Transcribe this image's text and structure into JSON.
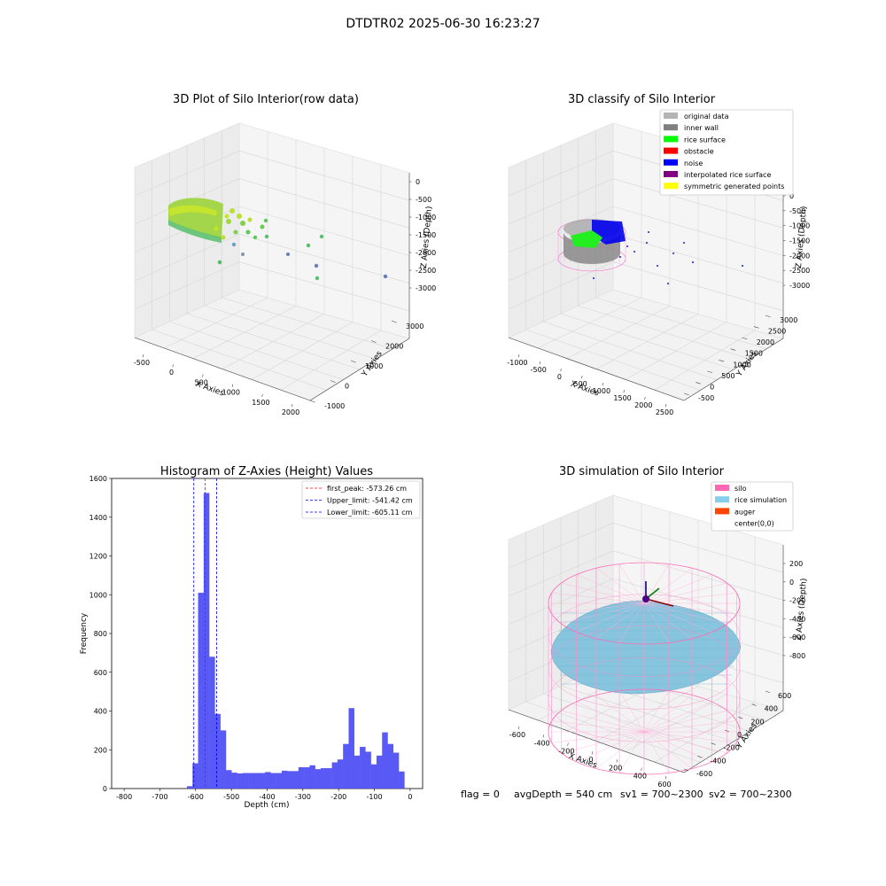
{
  "figure": {
    "suptitle": "DTDTR02 2025-06-30 16:23:27",
    "footer": {
      "flag": "flag = 0",
      "avg_depth": "avgDepth = 540 cm",
      "sv1": "sv1 = 700~2300",
      "sv2": "sv2 = 700~2300"
    }
  },
  "chart_data": [
    {
      "type": "scatter",
      "projection": "3d",
      "title": "3D Plot of Silo Interior(row data)",
      "xlabel": "X Axies",
      "ylabel": "Y Axies",
      "zlabel": "Z Axies (Depth)",
      "xticks": [
        "-500",
        "0",
        "500",
        "1000",
        "1500",
        "2000"
      ],
      "yticks": [
        "-1000",
        "0",
        "1000",
        "2000",
        "3000"
      ],
      "zticks": [
        "0",
        "-500",
        "-1000",
        "-1500",
        "-2000",
        "-2500",
        "-3000"
      ],
      "colormap": "viridis",
      "point_color": "#a0e632"
    },
    {
      "type": "scatter",
      "projection": "3d",
      "title": "3D classify of Silo Interior",
      "xlabel": "X Axies",
      "ylabel": "Y Axies",
      "zlabel": "Z Axies (Depth)",
      "xticks": [
        "-1000",
        "-500",
        "0",
        "500",
        "1000",
        "1500",
        "2000",
        "2500"
      ],
      "yticks": [
        "-500",
        "0",
        "500",
        "1000",
        "1500",
        "2000",
        "2500",
        "3000"
      ],
      "zticks": [
        "0",
        "-500",
        "-1000",
        "-1500",
        "-2000",
        "-2500",
        "-3000"
      ],
      "legend_position": "top-right",
      "legend": [
        {
          "label": "original data",
          "color": "#b4b4b4"
        },
        {
          "label": "inner wall",
          "color": "#808080"
        },
        {
          "label": "rice surface",
          "color": "#00ff00"
        },
        {
          "label": "obstacle",
          "color": "#ff0000"
        },
        {
          "label": "noise",
          "color": "#0000ff"
        },
        {
          "label": "interpolated rice surface",
          "color": "#800080"
        },
        {
          "label": "symmetric generated points",
          "color": "#ffff00"
        }
      ]
    },
    {
      "type": "bar",
      "title": "Histogram of Z-Axies (Height) Values",
      "xlabel": "Depth (cm)",
      "ylabel": "Frequency",
      "xlim": [
        -835,
        35
      ],
      "ylim": [
        0,
        1600
      ],
      "xticks": [
        -800,
        -700,
        -600,
        -500,
        -400,
        -300,
        -200,
        -100,
        0
      ],
      "yticks": [
        0,
        200,
        400,
        600,
        800,
        1000,
        1200,
        1400,
        1600
      ],
      "bar_color": "#5050f5",
      "bin_width": 15.6,
      "values": [
        {
          "x": -624.4,
          "y": 12
        },
        {
          "x": -608.8,
          "y": 130
        },
        {
          "x": -593.2,
          "y": 1010
        },
        {
          "x": -577.6,
          "y": 1525
        },
        {
          "x": -562.0,
          "y": 680
        },
        {
          "x": -546.4,
          "y": 385
        },
        {
          "x": -530.8,
          "y": 300
        },
        {
          "x": -515.2,
          "y": 95
        },
        {
          "x": -499.6,
          "y": 82
        },
        {
          "x": -484.0,
          "y": 78
        },
        {
          "x": -468.4,
          "y": 80
        },
        {
          "x": -452.8,
          "y": 80
        },
        {
          "x": -437.2,
          "y": 80
        },
        {
          "x": -421.6,
          "y": 80
        },
        {
          "x": -406.0,
          "y": 85
        },
        {
          "x": -390.4,
          "y": 80
        },
        {
          "x": -374.8,
          "y": 80
        },
        {
          "x": -359.2,
          "y": 92
        },
        {
          "x": -343.6,
          "y": 90
        },
        {
          "x": -328.0,
          "y": 90
        },
        {
          "x": -312.4,
          "y": 110
        },
        {
          "x": -296.8,
          "y": 110
        },
        {
          "x": -281.2,
          "y": 120
        },
        {
          "x": -265.6,
          "y": 100
        },
        {
          "x": -250.0,
          "y": 105
        },
        {
          "x": -234.4,
          "y": 105
        },
        {
          "x": -218.8,
          "y": 135
        },
        {
          "x": -203.2,
          "y": 150
        },
        {
          "x": -187.6,
          "y": 230
        },
        {
          "x": -172.0,
          "y": 415
        },
        {
          "x": -156.4,
          "y": 170
        },
        {
          "x": -140.8,
          "y": 215
        },
        {
          "x": -125.2,
          "y": 190
        },
        {
          "x": -109.6,
          "y": 125
        },
        {
          "x": -94.0,
          "y": 170
        },
        {
          "x": -78.4,
          "y": 290
        },
        {
          "x": -62.8,
          "y": 230
        },
        {
          "x": -47.2,
          "y": 185
        },
        {
          "x": -31.6,
          "y": 88
        }
      ],
      "vlines": [
        {
          "label": "first_peak: -573.26 cm",
          "x": -573.26,
          "color": "#ff0000"
        },
        {
          "label": "Upper_limit: -541.42 cm",
          "x": -541.42,
          "color": "#0000ff"
        },
        {
          "label": "Lower_limit: -605.11 cm",
          "x": -605.11,
          "color": "#0000ff"
        }
      ],
      "legend_position": "top-right"
    },
    {
      "type": "scatter",
      "projection": "3d",
      "title": "3D simulation of Silo Interior",
      "xlabel": "X Axies",
      "ylabel": "Y Axies",
      "zlabel": "Z Axies (Depth)",
      "xticks": [
        "-600",
        "-400",
        "-200",
        "0",
        "200",
        "400",
        "600"
      ],
      "yticks": [
        "-600",
        "-400",
        "-200",
        "0",
        "200",
        "400",
        "600"
      ],
      "zticks": [
        "200",
        "0",
        "-200",
        "-400",
        "-600",
        "-800"
      ],
      "legend_position": "top-right",
      "legend": [
        {
          "label": "silo",
          "color": "#ff69b4"
        },
        {
          "label": "rice simulation",
          "color": "#87ceeb"
        },
        {
          "label": "auger",
          "color": "#ff4500"
        },
        {
          "label": "center(0,0)",
          "color": ""
        }
      ]
    }
  ]
}
